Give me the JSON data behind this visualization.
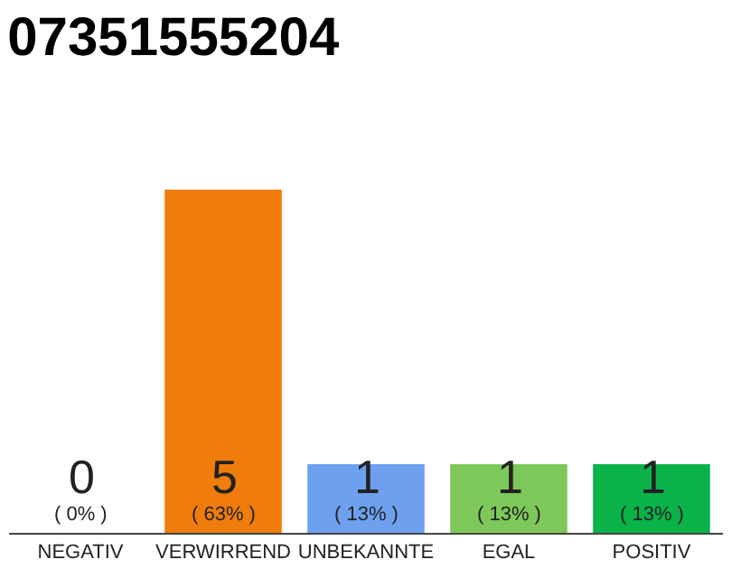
{
  "chart_data": {
    "type": "bar",
    "title": "07351555204",
    "categories": [
      "NEGATIV",
      "VERWIRREND",
      "UNBEKANNTE",
      "EGAL",
      "POSITIV"
    ],
    "values": [
      0,
      5,
      1,
      1,
      1
    ],
    "colors": [
      "#e05050",
      "#f07c0c",
      "#6ea0f0",
      "#7ec85a",
      "#0ab24a"
    ],
    "value_labels": [
      "0\n( 0% )",
      "5\n( 63% )",
      "1\n( 13% )",
      "1\n( 13% )",
      "1\n( 13% )"
    ],
    "data_labels": false
  }
}
